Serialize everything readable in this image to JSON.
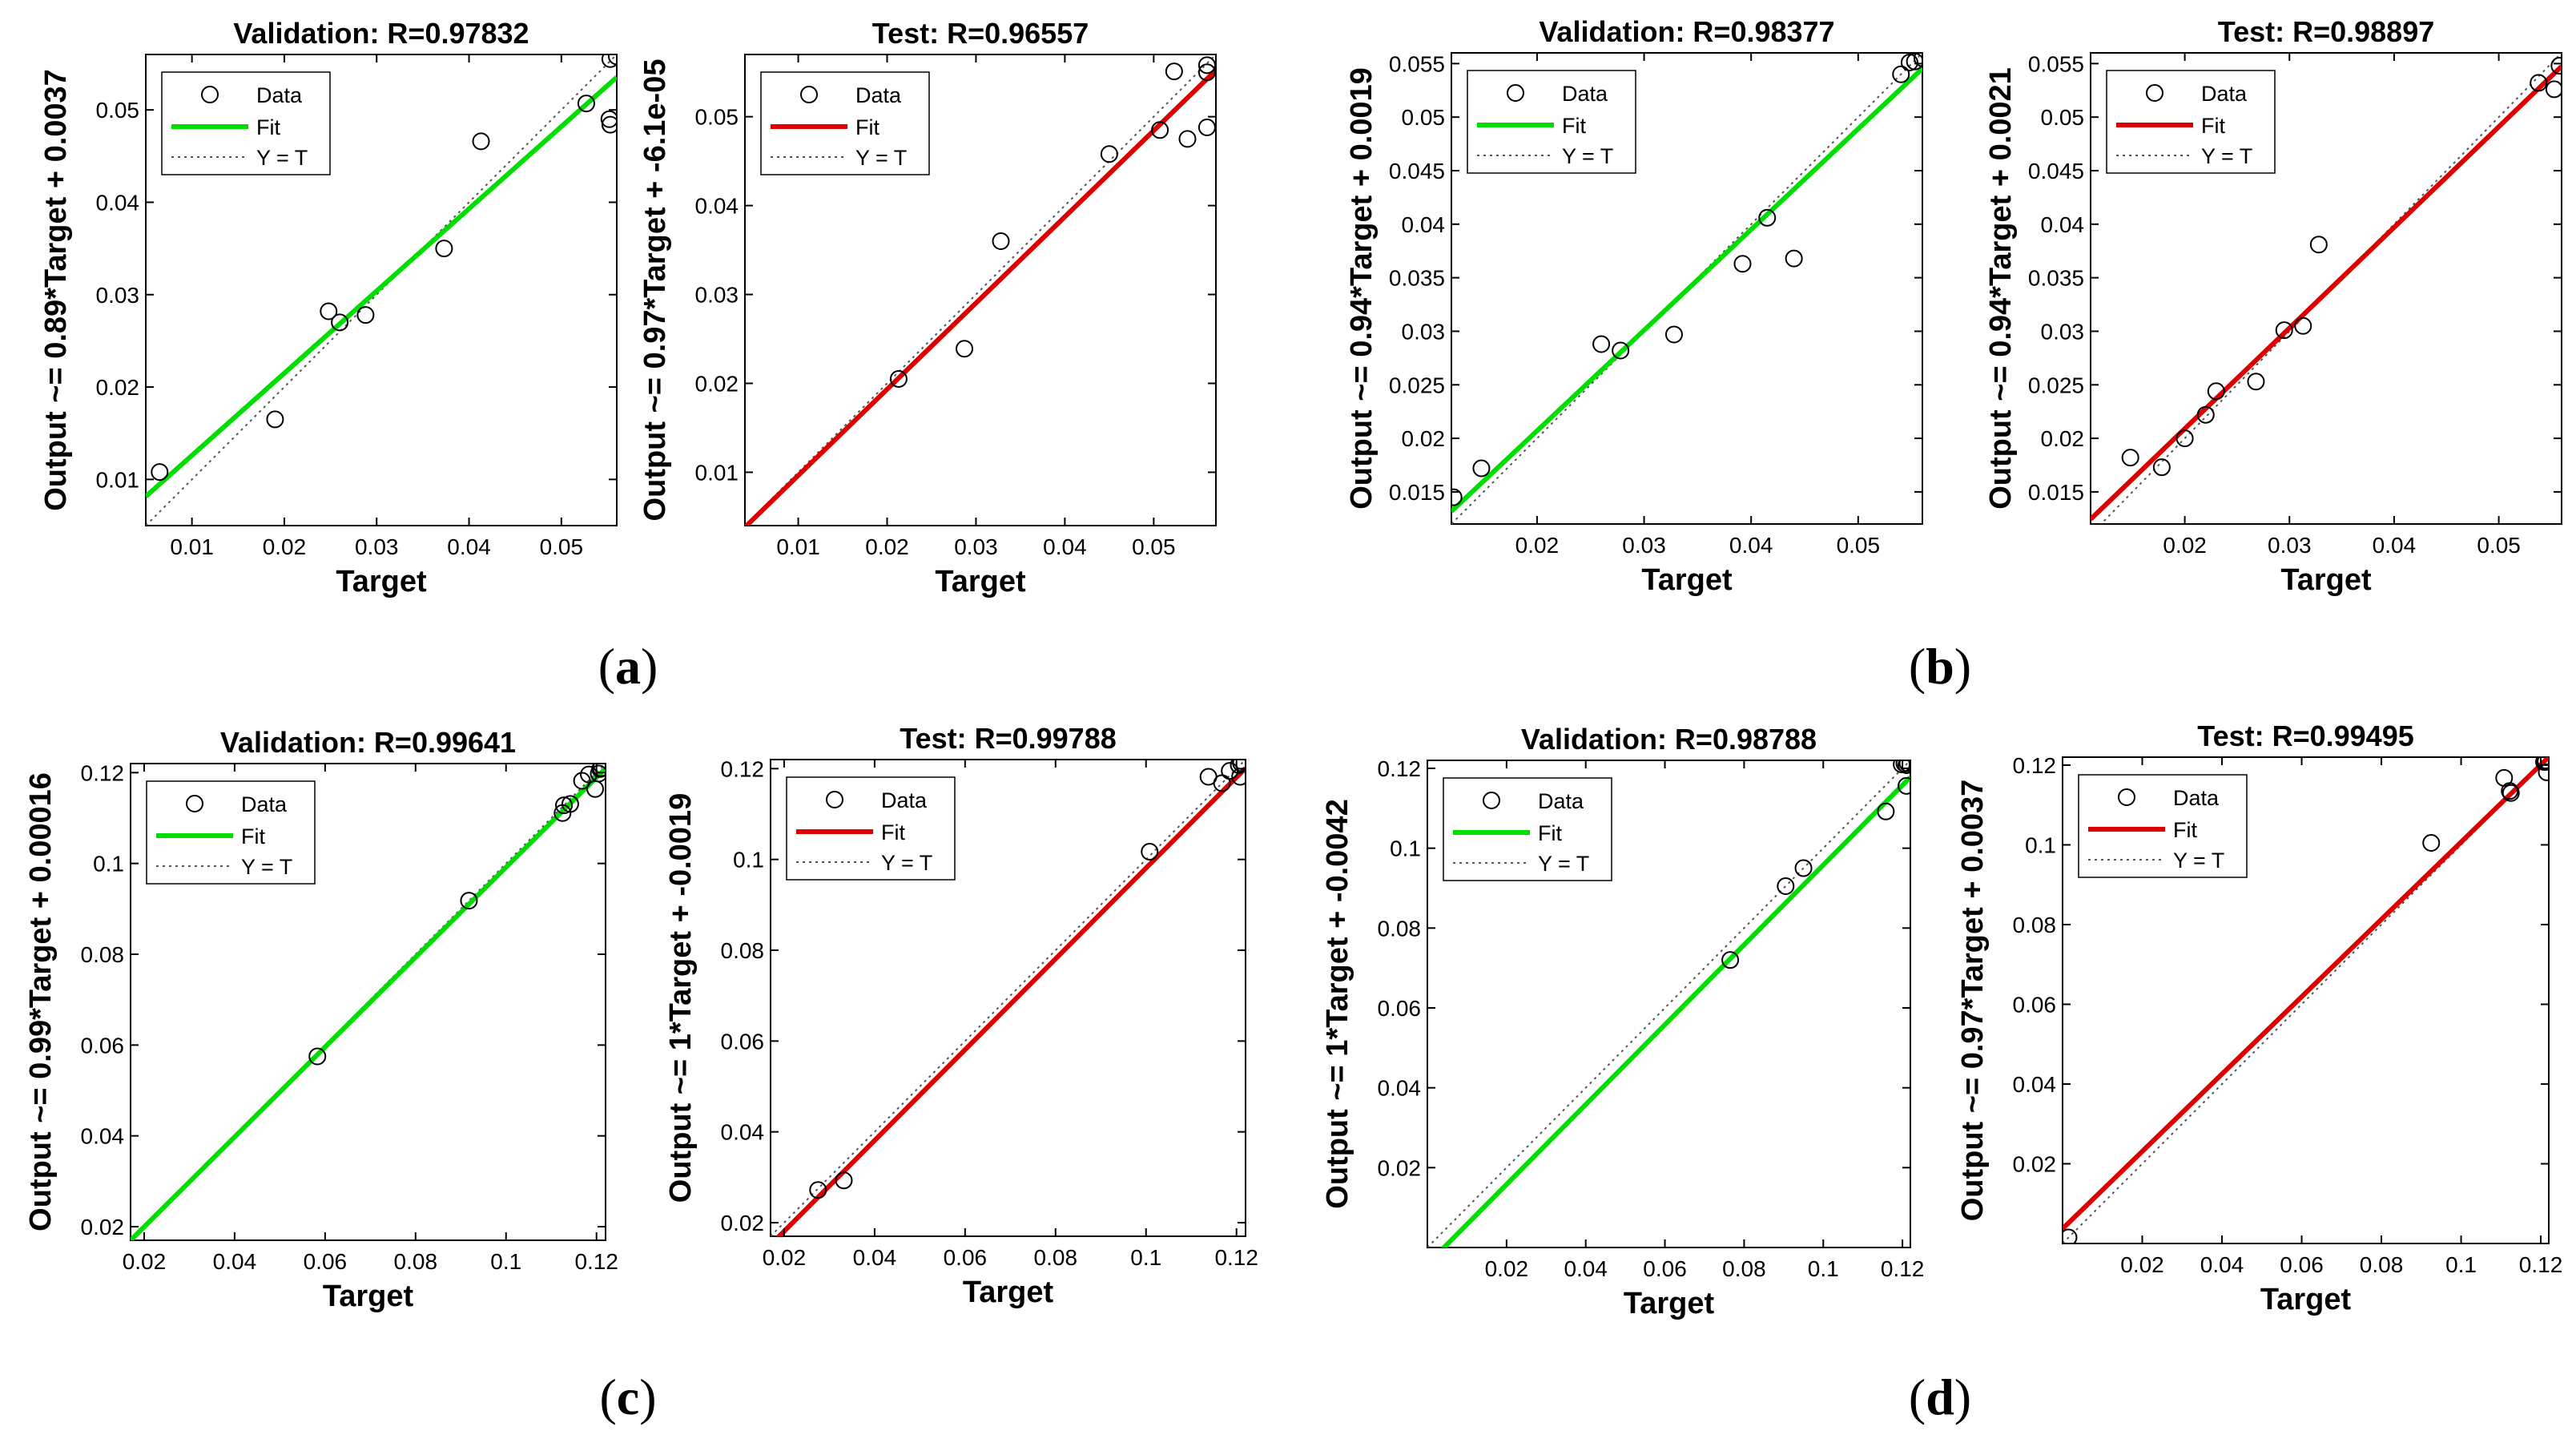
{
  "colors": {
    "validation_fit": "#00dd00",
    "test_fit": "#dd0000",
    "identity": "#555555",
    "data_marker": "#000000"
  },
  "panel_labels": [
    "a",
    "b",
    "c",
    "d"
  ],
  "chart_data": [
    {
      "type": "scatter",
      "panel": "a",
      "title": "Validation: R=0.97832",
      "xlabel": "Target",
      "ylabel": "Output ~= 0.89*Target + 0.0037",
      "xlim": [
        0.005,
        0.056
      ],
      "ylim": [
        0.005,
        0.056
      ],
      "xticks": [
        0.01,
        0.02,
        0.03,
        0.04,
        0.05
      ],
      "yticks": [
        0.01,
        0.02,
        0.03,
        0.04,
        0.05
      ],
      "fit": {
        "slope": 0.89,
        "intercept": 0.0037
      },
      "legend": [
        "Data",
        "Fit",
        "Y = T"
      ],
      "legend_position": "top-left",
      "points": [
        [
          0.0065,
          0.0108
        ],
        [
          0.019,
          0.0165
        ],
        [
          0.0248,
          0.0282
        ],
        [
          0.026,
          0.027
        ],
        [
          0.0288,
          0.0278
        ],
        [
          0.0373,
          0.035
        ],
        [
          0.0413,
          0.0466
        ],
        [
          0.0527,
          0.0507
        ],
        [
          0.0553,
          0.0555
        ],
        [
          0.0552,
          0.049
        ],
        [
          0.0553,
          0.0484
        ],
        [
          0.056,
          0.0558
        ]
      ]
    },
    {
      "type": "scatter",
      "panel": "a",
      "title": "Test: R=0.96557",
      "xlabel": "Target",
      "ylabel": "Output ~= 0.97*Target + -6.1e-05",
      "xlim": [
        0.004,
        0.057
      ],
      "ylim": [
        0.004,
        0.057
      ],
      "xticks": [
        0.01,
        0.02,
        0.03,
        0.04,
        0.05
      ],
      "yticks": [
        0.01,
        0.02,
        0.03,
        0.04,
        0.05
      ],
      "fit": {
        "slope": 0.97,
        "intercept": -6.1e-05
      },
      "legend": [
        "Data",
        "Fit",
        "Y = T"
      ],
      "legend_position": "top-left",
      "points": [
        [
          0.0213,
          0.0205
        ],
        [
          0.0287,
          0.0239
        ],
        [
          0.0328,
          0.036
        ],
        [
          0.045,
          0.0458
        ],
        [
          0.0507,
          0.0485
        ],
        [
          0.0523,
          0.0551
        ],
        [
          0.0538,
          0.0475
        ],
        [
          0.056,
          0.055
        ],
        [
          0.056,
          0.0558
        ],
        [
          0.056,
          0.0488
        ]
      ]
    },
    {
      "type": "scatter",
      "panel": "b",
      "title": "Validation: R=0.98377",
      "xlabel": "Target",
      "ylabel": "Output ~= 0.94*Target + 0.0019",
      "xlim": [
        0.012,
        0.056
      ],
      "ylim": [
        0.012,
        0.056
      ],
      "xticks": [
        0.02,
        0.03,
        0.04,
        0.05
      ],
      "yticks": [
        0.015,
        0.02,
        0.025,
        0.03,
        0.035,
        0.04,
        0.045,
        0.05,
        0.055
      ],
      "fit": {
        "slope": 0.94,
        "intercept": 0.0019
      },
      "legend": [
        "Data",
        "Fit",
        "Y = T"
      ],
      "legend_position": "top-left",
      "points": [
        [
          0.0122,
          0.0145
        ],
        [
          0.0148,
          0.0172
        ],
        [
          0.026,
          0.0288
        ],
        [
          0.0278,
          0.0282
        ],
        [
          0.0328,
          0.0297
        ],
        [
          0.0392,
          0.0363
        ],
        [
          0.0415,
          0.0406
        ],
        [
          0.044,
          0.0368
        ],
        [
          0.054,
          0.054
        ],
        [
          0.0548,
          0.0551
        ],
        [
          0.0553,
          0.0552
        ],
        [
          0.056,
          0.0555
        ]
      ]
    },
    {
      "type": "scatter",
      "panel": "b",
      "title": "Test: R=0.98897",
      "xlabel": "Target",
      "ylabel": "Output ~= 0.94*Target + 0.0021",
      "xlim": [
        0.011,
        0.056
      ],
      "ylim": [
        0.012,
        0.056
      ],
      "xticks": [
        0.02,
        0.03,
        0.04,
        0.05
      ],
      "yticks": [
        0.015,
        0.02,
        0.025,
        0.03,
        0.035,
        0.04,
        0.045,
        0.05,
        0.055
      ],
      "fit": {
        "slope": 0.94,
        "intercept": 0.0021
      },
      "legend": [
        "Data",
        "Fit",
        "Y = T"
      ],
      "legend_position": "top-left",
      "points": [
        [
          0.0148,
          0.0182
        ],
        [
          0.0178,
          0.0173
        ],
        [
          0.02,
          0.02
        ],
        [
          0.022,
          0.0222
        ],
        [
          0.023,
          0.0244
        ],
        [
          0.0268,
          0.0253
        ],
        [
          0.0295,
          0.0301
        ],
        [
          0.0313,
          0.0305
        ],
        [
          0.0328,
          0.0381
        ],
        [
          0.0538,
          0.0532
        ],
        [
          0.0553,
          0.0526
        ],
        [
          0.0558,
          0.0548
        ]
      ]
    },
    {
      "type": "scatter",
      "panel": "c",
      "title": "Validation: R=0.99641",
      "xlabel": "Target",
      "ylabel": "Output ~= 0.99*Target + 0.00016",
      "xlim": [
        0.017,
        0.122
      ],
      "ylim": [
        0.017,
        0.122
      ],
      "xticks": [
        0.02,
        0.04,
        0.06,
        0.08,
        0.1,
        0.12
      ],
      "yticks": [
        0.02,
        0.04,
        0.06,
        0.08,
        0.1,
        0.12
      ],
      "fit": {
        "slope": 0.99,
        "intercept": 0.00016
      },
      "legend": [
        "Data",
        "Fit",
        "Y = T"
      ],
      "legend_position": "top-left",
      "points": [
        [
          0.0583,
          0.0575
        ],
        [
          0.0918,
          0.0918
        ],
        [
          0.1125,
          0.1111
        ],
        [
          0.1128,
          0.1128
        ],
        [
          0.1142,
          0.1131
        ],
        [
          0.1168,
          0.1182
        ],
        [
          0.1183,
          0.1196
        ],
        [
          0.1197,
          0.1164
        ],
        [
          0.1205,
          0.1198
        ],
        [
          0.1208,
          0.1208
        ],
        [
          0.121,
          0.121
        ]
      ]
    },
    {
      "type": "scatter",
      "panel": "c",
      "title": "Test: R=0.99788",
      "xlabel": "Target",
      "ylabel": "Output ~= 1*Target + -0.0019",
      "xlim": [
        0.017,
        0.122
      ],
      "ylim": [
        0.017,
        0.122
      ],
      "xticks": [
        0.02,
        0.04,
        0.06,
        0.08,
        0.1,
        0.12
      ],
      "yticks": [
        0.02,
        0.04,
        0.06,
        0.08,
        0.1,
        0.12
      ],
      "fit": {
        "slope": 1.0,
        "intercept": -0.0019
      },
      "legend": [
        "Data",
        "Fit",
        "Y = T"
      ],
      "legend_position": "top-left",
      "points": [
        [
          0.0275,
          0.0272
        ],
        [
          0.0332,
          0.0293
        ],
        [
          0.1008,
          0.1017
        ],
        [
          0.1138,
          0.1182
        ],
        [
          0.1168,
          0.1168
        ],
        [
          0.1185,
          0.1195
        ],
        [
          0.1205,
          0.1208
        ],
        [
          0.1208,
          0.1182
        ],
        [
          0.121,
          0.1212
        ]
      ]
    },
    {
      "type": "scatter",
      "panel": "d",
      "title": "Validation: R=0.98788",
      "xlabel": "Target",
      "ylabel": "Output ~= 1*Target + -0.0042",
      "xlim": [
        0.0,
        0.122
      ],
      "ylim": [
        0.0,
        0.122
      ],
      "xticks": [
        0.02,
        0.04,
        0.06,
        0.08,
        0.1,
        0.12
      ],
      "yticks": [
        0.02,
        0.04,
        0.06,
        0.08,
        0.1,
        0.12
      ],
      "fit": {
        "slope": 1.0,
        "intercept": -0.0042
      },
      "legend": [
        "Data",
        "Fit",
        "Y = T"
      ],
      "legend_position": "top-left",
      "points": [
        [
          0.0765,
          0.072
        ],
        [
          0.0905,
          0.0905
        ],
        [
          0.095,
          0.095
        ],
        [
          0.1158,
          0.1092
        ],
        [
          0.1198,
          0.121
        ],
        [
          0.1205,
          0.1212
        ],
        [
          0.121,
          0.1208
        ],
        [
          0.121,
          0.1156
        ],
        [
          0.1213,
          0.1213
        ]
      ]
    },
    {
      "type": "scatter",
      "panel": "d",
      "title": "Test: R=0.99495",
      "xlabel": "Target",
      "ylabel": "Output ~= 0.97*Target + 0.0037",
      "xlim": [
        0.0,
        0.122
      ],
      "ylim": [
        0.0,
        0.122
      ],
      "xticks": [
        0.02,
        0.04,
        0.06,
        0.08,
        0.1,
        0.12
      ],
      "yticks": [
        0.02,
        0.04,
        0.06,
        0.08,
        0.1,
        0.12
      ],
      "fit": {
        "slope": 0.97,
        "intercept": 0.0037
      },
      "legend": [
        "Data",
        "Fit",
        "Y = T"
      ],
      "legend_position": "top-left",
      "points": [
        [
          0.0015,
          0.0015
        ],
        [
          0.0925,
          0.1005
        ],
        [
          0.1108,
          0.1168
        ],
        [
          0.1122,
          0.1135
        ],
        [
          0.1125,
          0.113
        ],
        [
          0.1208,
          0.1208
        ],
        [
          0.1212,
          0.1208
        ],
        [
          0.1215,
          0.1182
        ],
        [
          0.1212,
          0.1212
        ]
      ]
    }
  ]
}
